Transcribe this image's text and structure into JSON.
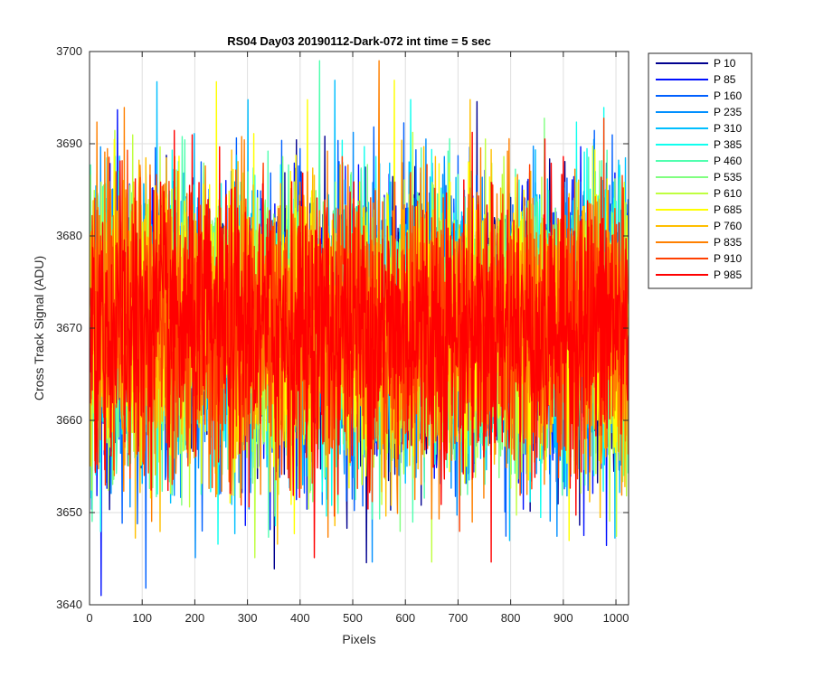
{
  "chart_data": {
    "type": "line",
    "title": "RS04 Day03 20190112-Dark-072 int time = 5 sec",
    "xlabel": "Pixels",
    "ylabel": "Cross Track Signal (ADU)",
    "xlim": [
      0,
      1024
    ],
    "ylim": [
      3640,
      3700
    ],
    "xticks": [
      0,
      100,
      200,
      300,
      400,
      500,
      600,
      700,
      800,
      900,
      1000
    ],
    "yticks": [
      3640,
      3650,
      3660,
      3670,
      3680,
      3690,
      3700
    ],
    "grid": true,
    "legend_placement": "outside-right",
    "noise": {
      "mean": 3670,
      "sigma": 7.5
    },
    "series": [
      {
        "name": "P 10",
        "color": "#00008f"
      },
      {
        "name": "P 85",
        "color": "#0010ff"
      },
      {
        "name": "P 160",
        "color": "#0060ff"
      },
      {
        "name": "P 235",
        "color": "#008fff"
      },
      {
        "name": "P 310",
        "color": "#00bfff"
      },
      {
        "name": "P 385",
        "color": "#10ffef"
      },
      {
        "name": "P 460",
        "color": "#50ffaf"
      },
      {
        "name": "P 535",
        "color": "#80ff80"
      },
      {
        "name": "P 610",
        "color": "#bfff40"
      },
      {
        "name": "P 685",
        "color": "#ffff00"
      },
      {
        "name": "P 760",
        "color": "#ffbf00"
      },
      {
        "name": "P 835",
        "color": "#ff8000"
      },
      {
        "name": "P 910",
        "color": "#ff4000"
      },
      {
        "name": "P 985",
        "color": "#ff0000"
      }
    ]
  }
}
